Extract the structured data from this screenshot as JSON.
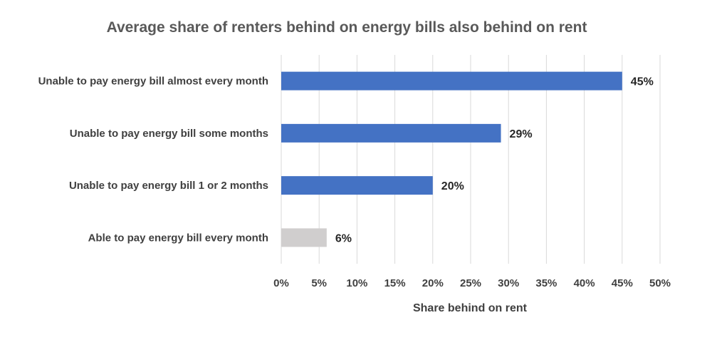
{
  "chart_data": {
    "type": "bar",
    "orientation": "horizontal",
    "title": "Average share of renters behind on energy bills also behind on rent",
    "xlabel": "Share behind on rent",
    "ylabel": "",
    "categories": [
      "Unable to pay energy bill almost every month",
      "Unable to pay energy bill some months",
      "Unable to pay energy bill 1 or 2 months",
      "Able to pay energy bill every month"
    ],
    "values": [
      45,
      29,
      20,
      6
    ],
    "data_labels": [
      "45%",
      "29%",
      "20%",
      "6%"
    ],
    "bar_colors": [
      "#4472c4",
      "#4472c4",
      "#4472c4",
      "#d0cece"
    ],
    "xlim": [
      0,
      50
    ],
    "x_ticks": [
      0,
      5,
      10,
      15,
      20,
      25,
      30,
      35,
      40,
      45,
      50
    ],
    "x_tick_labels": [
      "0%",
      "5%",
      "10%",
      "15%",
      "20%",
      "25%",
      "30%",
      "35%",
      "40%",
      "45%",
      "50%"
    ],
    "grid": "vertical",
    "legend": "none"
  }
}
